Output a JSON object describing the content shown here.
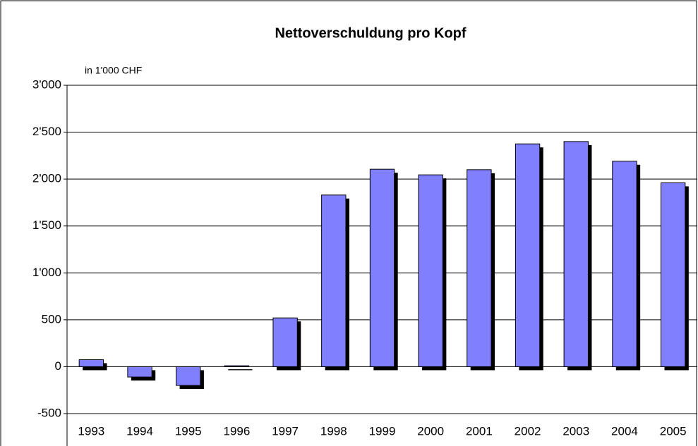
{
  "chart_data": {
    "type": "bar",
    "title": "Nettoverschuldung pro Kopf",
    "y_label": "in 1'000 CHF",
    "categories": [
      "1993",
      "1994",
      "1995",
      "1996",
      "1997",
      "1998",
      "1999",
      "2000",
      "2001",
      "2002",
      "2003",
      "2004",
      "2005"
    ],
    "values": [
      75,
      -110,
      -200,
      10,
      520,
      1830,
      2105,
      2045,
      2100,
      2375,
      2400,
      2190,
      1960
    ],
    "color": "#8080ff",
    "ylim": [
      -500,
      3000
    ],
    "yticks": [
      -500,
      0,
      500,
      {
        "value": 1000,
        "label": "1'000"
      },
      {
        "value": 1500,
        "label": "1'500"
      },
      {
        "value": 2000,
        "label": "2'000"
      },
      {
        "value": 2500,
        "label": "2'500"
      },
      {
        "value": 3000,
        "label": "3'000"
      }
    ],
    "grid": true
  }
}
